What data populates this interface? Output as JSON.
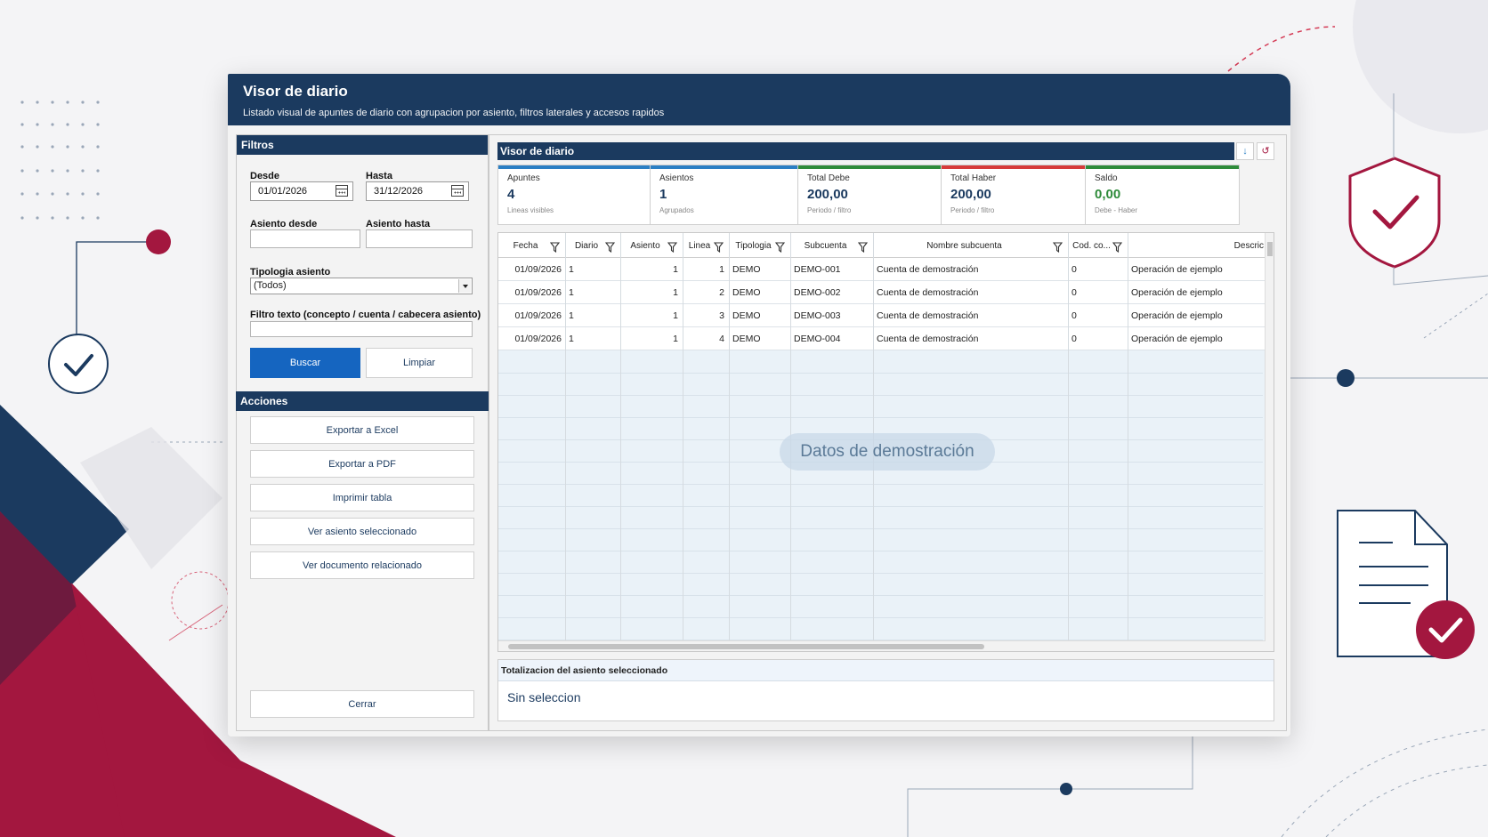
{
  "window": {
    "title": "Visor de diario",
    "subtitle": "Listado visual de apuntes de diario con agrupacion por asiento, filtros laterales y accesos rapidos"
  },
  "filters": {
    "header": "Filtros",
    "desde_label": "Desde",
    "desde_value": "01/01/2026",
    "hasta_label": "Hasta",
    "hasta_value": "31/12/2026",
    "asiento_desde_label": "Asiento desde",
    "asiento_hasta_label": "Asiento hasta",
    "tipologia_label": "Tipologia asiento",
    "tipologia_value": "(Todos)",
    "texto_label": "Filtro texto (concepto / cuenta / cabecera asiento)",
    "buscar": "Buscar",
    "limpiar": "Limpiar"
  },
  "actions": {
    "header": "Acciones",
    "items": [
      "Exportar a Excel",
      "Exportar a PDF",
      "Imprimir tabla",
      "Ver asiento seleccionado",
      "Ver documento relacionado"
    ],
    "cerrar": "Cerrar"
  },
  "visor": {
    "header": "Visor de diario",
    "tool_down": "↓",
    "tool_refresh": "↺"
  },
  "kpis": [
    {
      "label": "Apuntes",
      "value": "4",
      "sub": "Lineas visibles",
      "color": "#2b7fc4",
      "value_color": "#1b3a5f"
    },
    {
      "label": "Asientos",
      "value": "1",
      "sub": "Agrupados",
      "color": "#2b7fc4",
      "value_color": "#1b3a5f"
    },
    {
      "label": "Total Debe",
      "value": "200,00",
      "sub": "Periodo / filtro",
      "color": "#2e8b3a",
      "value_color": "#1b3a5f"
    },
    {
      "label": "Total Haber",
      "value": "200,00",
      "sub": "Periodo / filtro",
      "color": "#d63a3a",
      "value_color": "#1b3a5f"
    },
    {
      "label": "Saldo",
      "value": "0,00",
      "sub": "Debe - Haber",
      "color": "#2e8b3a",
      "value_color": "#2e8b3a"
    }
  ],
  "table": {
    "columns": [
      "Fecha",
      "Diario",
      "Asiento",
      "Linea",
      "Tipologia",
      "Subcuenta",
      "Nombre subcuenta",
      "Cod. co...",
      "Descric"
    ],
    "rows": [
      [
        "01/09/2026",
        "1",
        "1",
        "1",
        "DEMO",
        "DEMO-001",
        "Cuenta de demostración",
        "0",
        "Operación de ejemplo"
      ],
      [
        "01/09/2026",
        "1",
        "1",
        "2",
        "DEMO",
        "DEMO-002",
        "Cuenta de demostración",
        "0",
        "Operación de ejemplo"
      ],
      [
        "01/09/2026",
        "1",
        "1",
        "3",
        "DEMO",
        "DEMO-003",
        "Cuenta de demostración",
        "0",
        "Operación de ejemplo"
      ],
      [
        "01/09/2026",
        "1",
        "1",
        "4",
        "DEMO",
        "DEMO-004",
        "Cuenta de demostración",
        "0",
        "Operación de ejemplo"
      ]
    ],
    "watermark": "Datos de demostración"
  },
  "totals": {
    "header": "Totalizacion del asiento seleccionado",
    "value": "Sin seleccion"
  },
  "colors": {
    "navy": "#1b3a5f",
    "crimson": "#a3173f",
    "primary_button": "#1565c0"
  }
}
